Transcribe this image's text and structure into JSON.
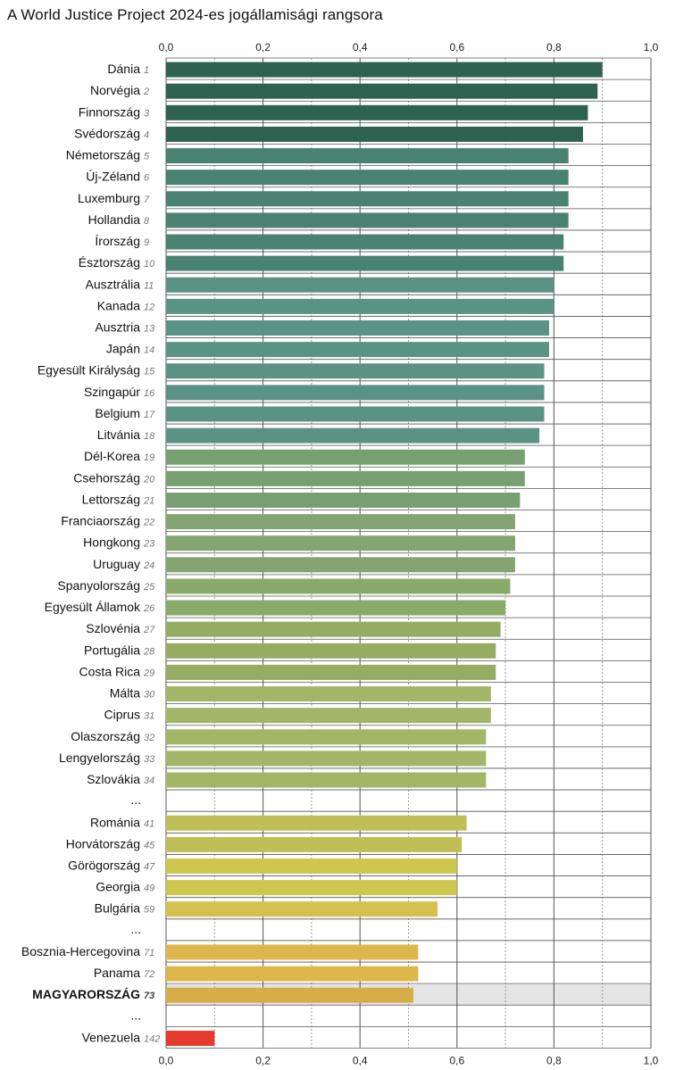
{
  "chart_data": {
    "type": "bar",
    "orientation": "horizontal",
    "title": "A World Justice Project 2024-es jogállamisági rangsora",
    "xlim": [
      0,
      1.0
    ],
    "x_ticks": [
      "0,0",
      "0,2",
      "0,4",
      "0,6",
      "0,8",
      "1,0"
    ],
    "x_tick_values": [
      0,
      0.2,
      0.4,
      0.6,
      0.8,
      1.0
    ],
    "grid": true,
    "highlight": "MAGYARORSZÁG",
    "gap_label": "...",
    "rows": [
      {
        "country": "Dánia",
        "rank": "1",
        "value": 0.9,
        "color": "#2d6150"
      },
      {
        "country": "Norvégia",
        "rank": "2",
        "value": 0.89,
        "color": "#2d6150"
      },
      {
        "country": "Finnország",
        "rank": "3",
        "value": 0.87,
        "color": "#2d6150"
      },
      {
        "country": "Svédország",
        "rank": "4",
        "value": 0.86,
        "color": "#2d6150"
      },
      {
        "country": "Németország",
        "rank": "5",
        "value": 0.83,
        "color": "#4a8272"
      },
      {
        "country": "Új-Zéland",
        "rank": "6",
        "value": 0.83,
        "color": "#4a8272"
      },
      {
        "country": "Luxemburg",
        "rank": "7",
        "value": 0.83,
        "color": "#4a8272"
      },
      {
        "country": "Hollandia",
        "rank": "8",
        "value": 0.83,
        "color": "#4a8272"
      },
      {
        "country": "Írország",
        "rank": "9",
        "value": 0.82,
        "color": "#4a8272"
      },
      {
        "country": "Észtország",
        "rank": "10",
        "value": 0.82,
        "color": "#4a8272"
      },
      {
        "country": "Ausztrália",
        "rank": "11",
        "value": 0.8,
        "color": "#5a9383"
      },
      {
        "country": "Kanada",
        "rank": "12",
        "value": 0.8,
        "color": "#5a9383"
      },
      {
        "country": "Ausztria",
        "rank": "13",
        "value": 0.79,
        "color": "#5a9383"
      },
      {
        "country": "Japán",
        "rank": "14",
        "value": 0.79,
        "color": "#5a9383"
      },
      {
        "country": "Egyesült Királyság",
        "rank": "15",
        "value": 0.78,
        "color": "#5a9383"
      },
      {
        "country": "Szingapúr",
        "rank": "16",
        "value": 0.78,
        "color": "#5a9383"
      },
      {
        "country": "Belgium",
        "rank": "17",
        "value": 0.78,
        "color": "#5a9383"
      },
      {
        "country": "Litvánia",
        "rank": "18",
        "value": 0.77,
        "color": "#5a9383"
      },
      {
        "country": "Dél-Korea",
        "rank": "19",
        "value": 0.74,
        "color": "#779f72"
      },
      {
        "country": "Csehország",
        "rank": "20",
        "value": 0.74,
        "color": "#779f72"
      },
      {
        "country": "Lettország",
        "rank": "21",
        "value": 0.73,
        "color": "#779f72"
      },
      {
        "country": "Franciaország",
        "rank": "22",
        "value": 0.72,
        "color": "#84a572"
      },
      {
        "country": "Hongkong",
        "rank": "23",
        "value": 0.72,
        "color": "#84a572"
      },
      {
        "country": "Uruguay",
        "rank": "24",
        "value": 0.72,
        "color": "#84a572"
      },
      {
        "country": "Spanyolország",
        "rank": "25",
        "value": 0.71,
        "color": "#8aaa6a"
      },
      {
        "country": "Egyesült Államok",
        "rank": "26",
        "value": 0.7,
        "color": "#8aaa6a"
      },
      {
        "country": "Szlovénia",
        "rank": "27",
        "value": 0.69,
        "color": "#96ac62"
      },
      {
        "country": "Portugália",
        "rank": "28",
        "value": 0.68,
        "color": "#96ac62"
      },
      {
        "country": "Costa Rica",
        "rank": "29",
        "value": 0.68,
        "color": "#96ac62"
      },
      {
        "country": "Málta",
        "rank": "30",
        "value": 0.67,
        "color": "#a3b566"
      },
      {
        "country": "Ciprus",
        "rank": "31",
        "value": 0.67,
        "color": "#a3b566"
      },
      {
        "country": "Olaszország",
        "rank": "32",
        "value": 0.66,
        "color": "#a3b566"
      },
      {
        "country": "Lengyelország",
        "rank": "33",
        "value": 0.66,
        "color": "#a3b566"
      },
      {
        "country": "Szlovákia",
        "rank": "34",
        "value": 0.66,
        "color": "#a3b566"
      },
      {
        "gap": true
      },
      {
        "country": "Románia",
        "rank": "41",
        "value": 0.62,
        "color": "#c0bf57"
      },
      {
        "country": "Horvátország",
        "rank": "45",
        "value": 0.61,
        "color": "#c0bf57"
      },
      {
        "country": "Görögország",
        "rank": "47",
        "value": 0.6,
        "color": "#cdc74f"
      },
      {
        "country": "Georgia",
        "rank": "49",
        "value": 0.6,
        "color": "#cdc74f"
      },
      {
        "country": "Bulgária",
        "rank": "59",
        "value": 0.56,
        "color": "#d5c04d"
      },
      {
        "gap": true
      },
      {
        "country": "Bosznia-Hercegovina",
        "rank": "71",
        "value": 0.52,
        "color": "#ddb64c"
      },
      {
        "country": "Panama",
        "rank": "72",
        "value": 0.52,
        "color": "#ddb64c"
      },
      {
        "country": "MAGYARORSZÁG",
        "rank": "73",
        "value": 0.51,
        "color": "#d6ae47",
        "highlight": true
      },
      {
        "gap": true
      },
      {
        "country": "Venezuela",
        "rank": "142",
        "value": 0.1,
        "color": "#e43b2e"
      }
    ]
  }
}
